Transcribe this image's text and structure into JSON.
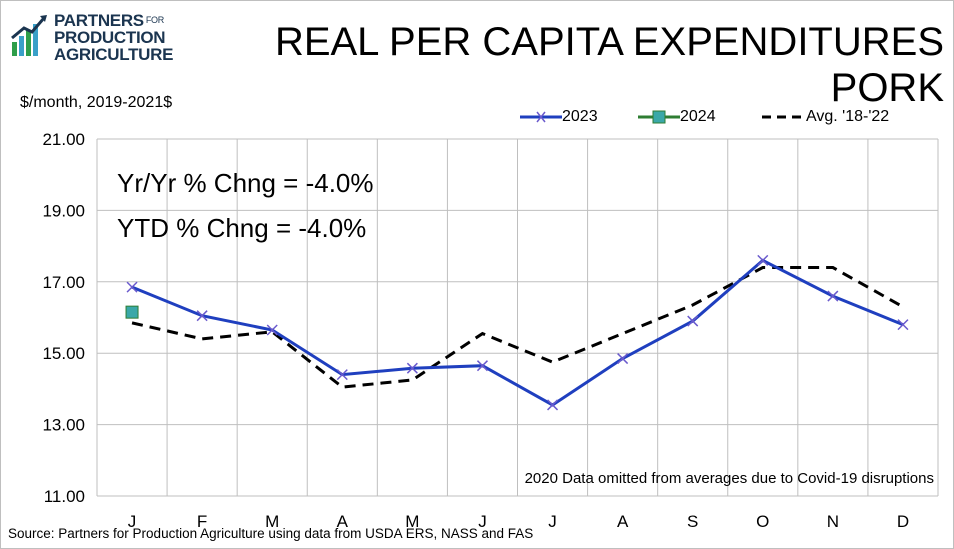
{
  "logo": {
    "line1": "PARTNERS",
    "for": "FOR",
    "line2": "PRODUCTION",
    "line3": "AGRICULTURE"
  },
  "title": {
    "line1": "REAL PER CAPITA EXPENDITURES",
    "line2": "PORK"
  },
  "unit_label": "$/month, 2019-2021$",
  "stats": {
    "yr_yr": "Yr/Yr % Chng = -4.0%",
    "ytd": "YTD % Chng = -4.0%"
  },
  "note": "2020 Data omitted from averages due to Covid-19 disruptions",
  "source": "Source: Partners for Production Agriculture using data from USDA ERS, NASS and FAS",
  "colors": {
    "s2023": "#1f3fbf",
    "s2024_fill": "#3aa8a8",
    "s2024_line": "#2e7d32",
    "avg": "#000000",
    "grid": "#bfbfbf"
  },
  "chart_data": {
    "type": "line",
    "categories": [
      "J",
      "F",
      "M",
      "A",
      "M",
      "J",
      "J",
      "A",
      "S",
      "O",
      "N",
      "D"
    ],
    "ylim": [
      11,
      21
    ],
    "yticks": [
      "21.00",
      "19.00",
      "17.00",
      "15.00",
      "13.00",
      "11.00"
    ],
    "grid": true,
    "legend_position": "top-right",
    "series": [
      {
        "name": "2023",
        "marker": "x",
        "style": "solid",
        "values": [
          16.85,
          16.05,
          15.65,
          14.4,
          14.58,
          14.65,
          13.55,
          14.85,
          15.9,
          17.6,
          16.6,
          15.8
        ]
      },
      {
        "name": "2024",
        "marker": "square",
        "style": "solid",
        "values": [
          16.15,
          null,
          null,
          null,
          null,
          null,
          null,
          null,
          null,
          null,
          null,
          null
        ]
      },
      {
        "name": "Avg. '18-'22",
        "marker": "none",
        "style": "dashed",
        "values": [
          15.85,
          15.4,
          15.6,
          14.05,
          14.25,
          15.55,
          14.75,
          15.55,
          16.35,
          17.4,
          17.4,
          16.3
        ]
      }
    ]
  }
}
